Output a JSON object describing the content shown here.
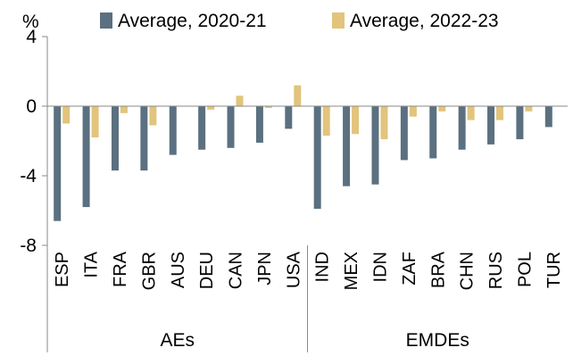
{
  "chart_data": {
    "type": "bar",
    "unit_label": "%",
    "ylim": [
      -8,
      4
    ],
    "yticks": [
      4,
      0,
      -4,
      -8
    ],
    "grid": false,
    "legend_position": "top",
    "categories": [
      "ESP",
      "ITA",
      "FRA",
      "GBR",
      "AUS",
      "DEU",
      "CAN",
      "JPN",
      "USA",
      "IND",
      "MEX",
      "IDN",
      "ZAF",
      "BRA",
      "CHN",
      "RUS",
      "POL",
      "TUR"
    ],
    "series": [
      {
        "name": "Average, 2020-21",
        "color": "#5b7080",
        "values": [
          -6.6,
          -5.8,
          -3.7,
          -3.7,
          -2.8,
          -2.5,
          -2.4,
          -2.1,
          -1.3,
          -5.9,
          -4.6,
          -4.5,
          -3.1,
          -3.0,
          -2.5,
          -2.2,
          -1.9,
          -1.2
        ]
      },
      {
        "name": "Average, 2022-23",
        "color": "#e2c47c",
        "values": [
          -1.0,
          -1.8,
          -0.4,
          -1.1,
          0.0,
          -0.2,
          0.6,
          -0.1,
          1.2,
          -1.7,
          -1.6,
          -1.9,
          -0.6,
          -0.3,
          -0.8,
          -0.8,
          -0.3,
          0.0
        ]
      }
    ],
    "groups": [
      {
        "label": "AEs",
        "count": 9
      },
      {
        "label": "EMDEs",
        "count": 9
      }
    ]
  }
}
